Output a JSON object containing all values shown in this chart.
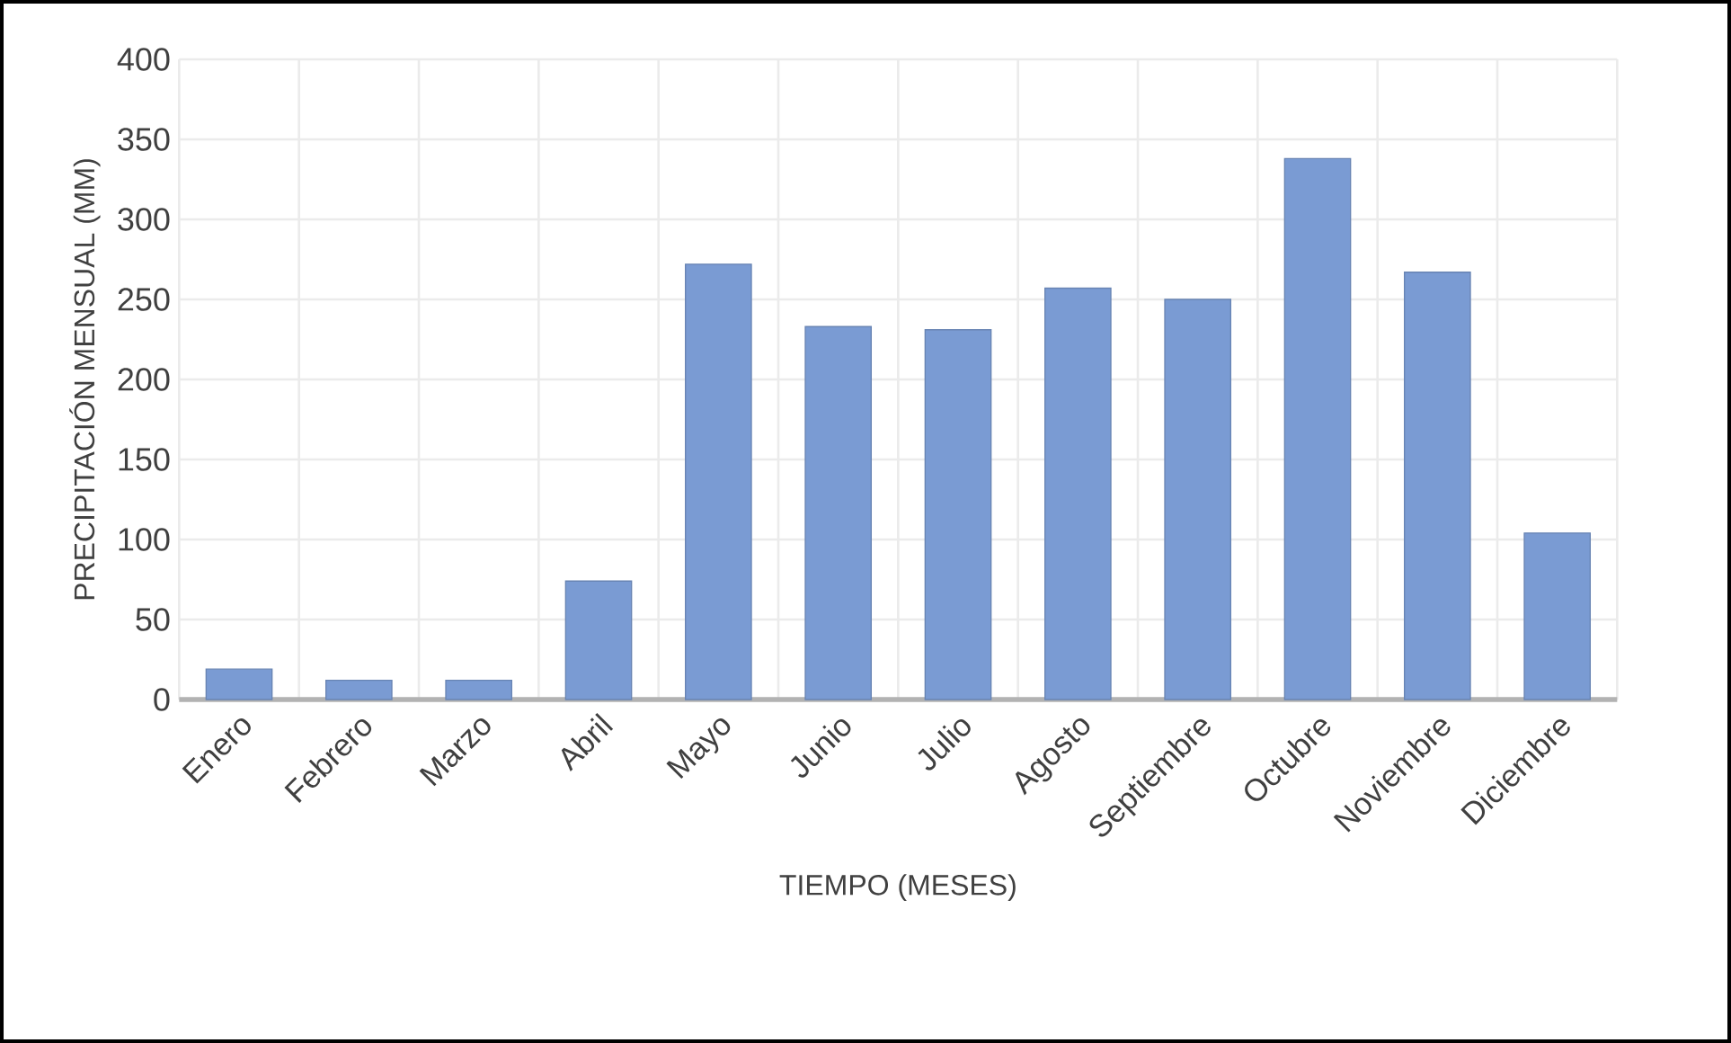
{
  "chart_data": {
    "type": "bar",
    "xlabel": "TIEMPO (MESES)",
    "ylabel": "PRECIPITACIÓN MENSUAL (MM)",
    "categories": [
      "Enero",
      "Febrero",
      "Marzo",
      "Abril",
      "Mayo",
      "Junio",
      "Julio",
      "Agosto",
      "Septiembre",
      "Octubre",
      "Noviembre",
      "Diciembre"
    ],
    "values": [
      19,
      12,
      12,
      74,
      272,
      233,
      231,
      257,
      250,
      338,
      267,
      104
    ],
    "color": "#7a9bd3",
    "ylim": [
      0,
      400
    ],
    "yticks": [
      0,
      50,
      100,
      150,
      200,
      250,
      300,
      350,
      400
    ],
    "grid": true
  }
}
